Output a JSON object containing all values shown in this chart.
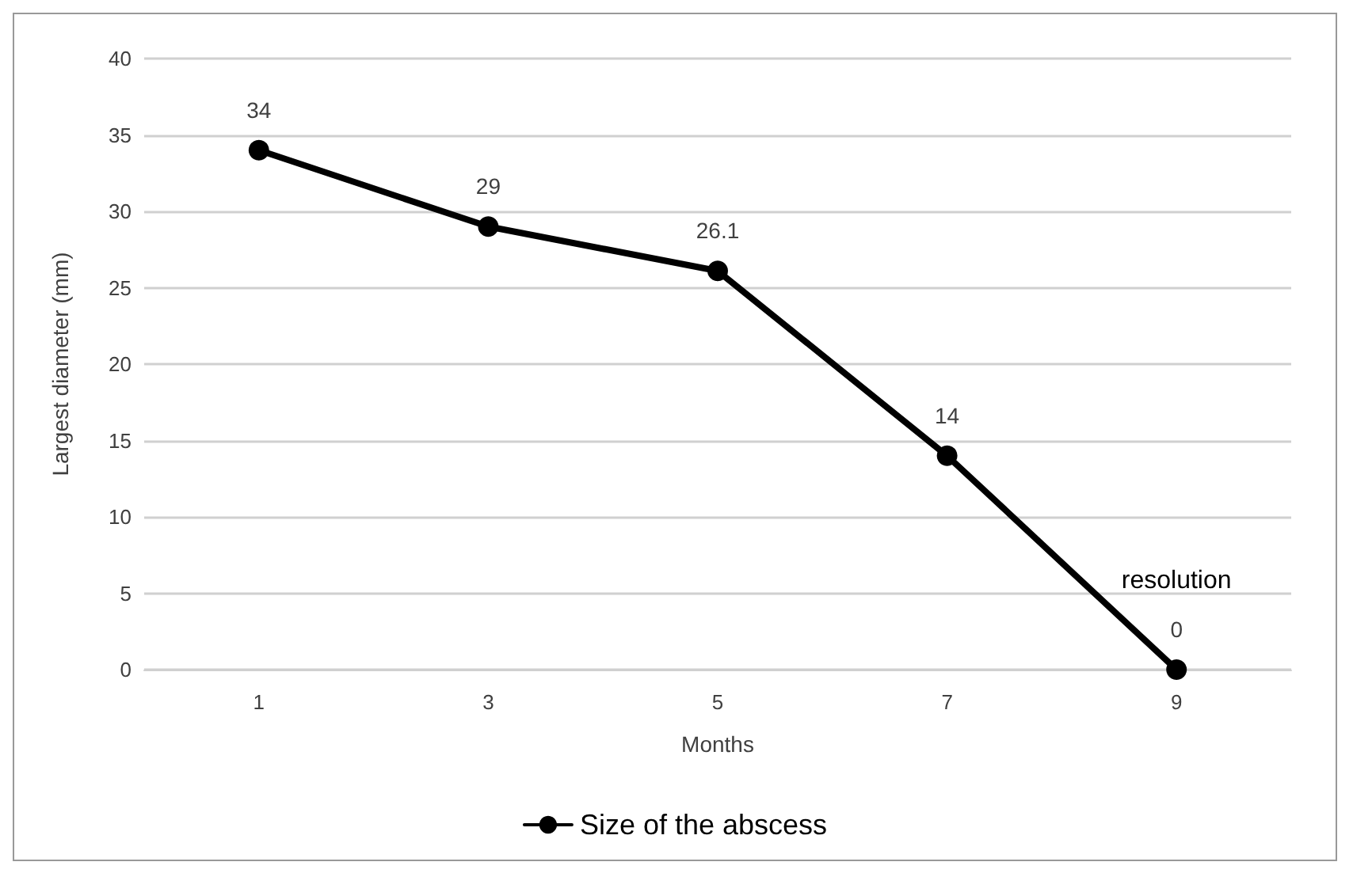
{
  "chart_data": {
    "type": "line",
    "xlabel": "Months",
    "ylabel": "Largest diameter (mm)",
    "categories": [
      "1",
      "3",
      "5",
      "7",
      "9"
    ],
    "series": [
      {
        "name": "Size of the abscess",
        "color": "#000000",
        "values": [
          34,
          29,
          26.1,
          14,
          0
        ]
      }
    ],
    "ylim": [
      0,
      40
    ],
    "yticks": [
      0,
      5,
      10,
      15,
      20,
      25,
      30,
      35,
      40
    ],
    "grid": "y",
    "legend": "bottom",
    "marker": "circle",
    "line_style": "solid",
    "data_labels": true,
    "annotations": [
      {
        "text": "resolution",
        "x": "9",
        "y": 0
      }
    ]
  }
}
